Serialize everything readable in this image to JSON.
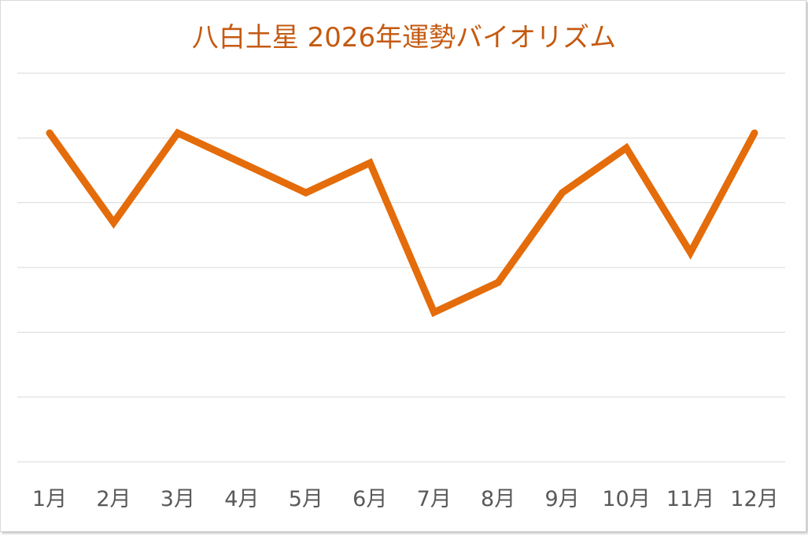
{
  "chart_data": {
    "type": "line",
    "title": "八白土星  2026年運勢バイオリズム",
    "categories": [
      "1月",
      "2月",
      "3月",
      "4月",
      "5月",
      "6月",
      "7月",
      "8月",
      "9月",
      "10月",
      "11月",
      "12月"
    ],
    "series": [
      {
        "values": [
          8,
          5,
          8,
          7,
          6,
          7,
          2,
          3,
          6,
          7.5,
          4,
          8
        ]
      }
    ],
    "ylim": [
      -3,
      10
    ],
    "grid": true,
    "legend": "none",
    "colors": {
      "line": "#e46c0a",
      "title": "#c55a11",
      "grid": "#d9d9d9",
      "tick": "#595959"
    }
  }
}
